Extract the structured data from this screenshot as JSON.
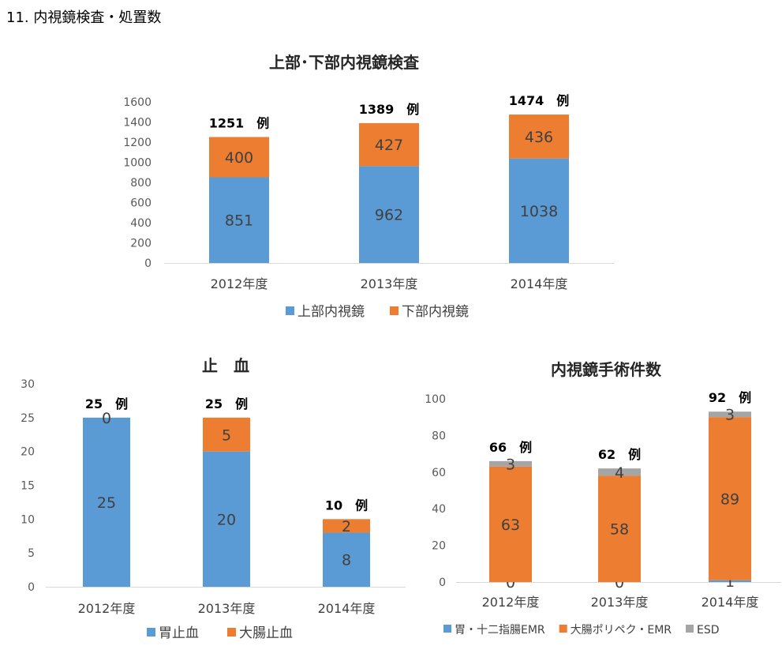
{
  "page_title": "11.  内視鏡検査・処置数",
  "colors": {
    "blue": "#5b9bd5",
    "orange": "#ed7d31",
    "gray": "#a5a5a5"
  },
  "chart_data": [
    {
      "type": "bar",
      "stacked": true,
      "title": "上部･下部内視鏡検査",
      "categories": [
        "2012年度",
        "2013年度",
        "2014年度"
      ],
      "yticks": [
        "0",
        "200",
        "400",
        "600",
        "800",
        "1000",
        "1200",
        "1400",
        "1600"
      ],
      "ylim": [
        0,
        1600
      ],
      "series": [
        {
          "name": "上部内視鏡",
          "values": [
            851,
            962,
            1038
          ],
          "color": "blue"
        },
        {
          "name": "下部内視鏡",
          "values": [
            400,
            427,
            436
          ],
          "color": "orange"
        }
      ],
      "totals": [
        "1251　例",
        "1389　例",
        "1474　例"
      ],
      "grid": false,
      "legend": "bottom"
    },
    {
      "type": "bar",
      "stacked": true,
      "title": "止　血",
      "categories": [
        "2012年度",
        "2013年度",
        "2014年度"
      ],
      "yticks": [
        "0",
        "5",
        "10",
        "15",
        "20",
        "25",
        "30"
      ],
      "ylim": [
        0,
        30
      ],
      "series": [
        {
          "name": "胃止血",
          "values": [
            25,
            20,
            8
          ],
          "color": "blue"
        },
        {
          "name": "大腸止血",
          "values": [
            0,
            5,
            2
          ],
          "color": "orange"
        }
      ],
      "totals": [
        "25　例",
        "25　例",
        "10　例"
      ],
      "grid": false,
      "legend": "bottom"
    },
    {
      "type": "bar",
      "stacked": true,
      "title": "内視鏡手術件数",
      "categories": [
        "2012年度",
        "2013年度",
        "2014年度"
      ],
      "yticks": [
        "0",
        "20",
        "40",
        "60",
        "80",
        "100"
      ],
      "ylim": [
        0,
        100
      ],
      "series": [
        {
          "name": "胃・十二指腸EMR",
          "values": [
            0,
            0,
            1
          ],
          "color": "blue"
        },
        {
          "name": "大腸ポリペク・EMR",
          "values": [
            63,
            58,
            89
          ],
          "color": "orange"
        },
        {
          "name": "ESD",
          "values": [
            3,
            4,
            3
          ],
          "color": "gray"
        }
      ],
      "totals": [
        "66　例",
        "62　例",
        "92　例"
      ],
      "grid": false,
      "legend": "bottom"
    }
  ]
}
